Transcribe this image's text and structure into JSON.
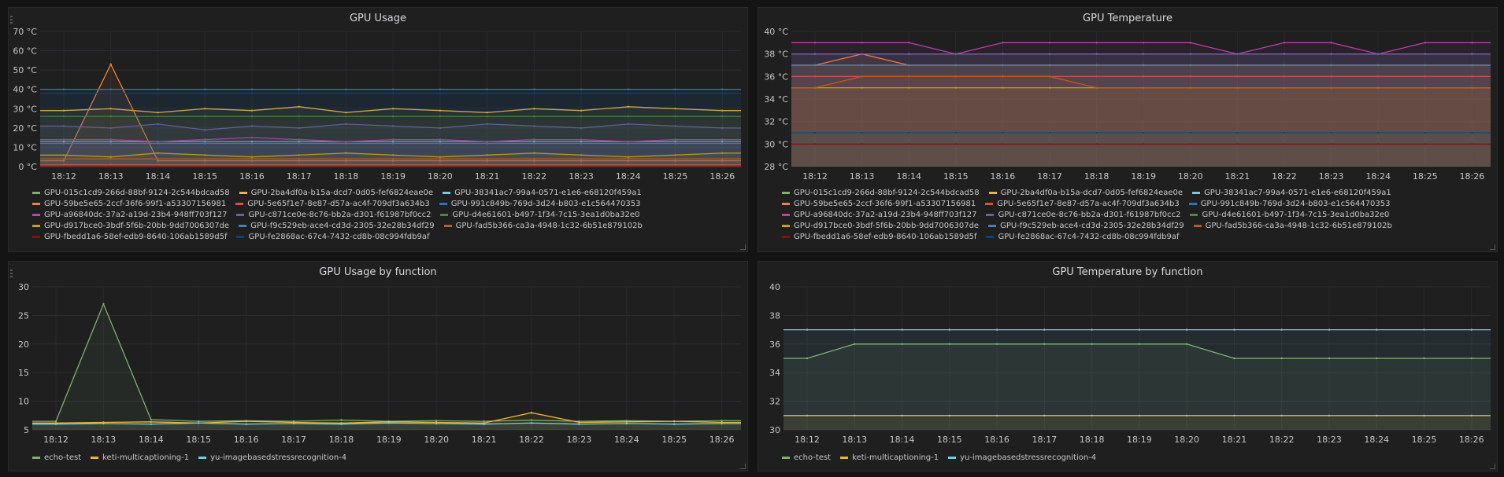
{
  "colors": {
    "bg": "#141414",
    "panel": "#1f1f20",
    "grid": "#2e2e30",
    "text": "#c7c7c7"
  },
  "time_ticks": [
    "18:12",
    "18:13",
    "18:14",
    "18:15",
    "18:16",
    "18:17",
    "18:18",
    "18:19",
    "18:20",
    "18:21",
    "18:22",
    "18:23",
    "18:24",
    "18:25",
    "18:26"
  ],
  "gpu_legend": [
    {
      "name": "GPU-015c1cd9-266d-88bf-9124-2c544bdcad58",
      "color": "#7eb26d"
    },
    {
      "name": "GPU-2ba4df0a-b15a-dcd7-0d05-fef6824eae0e",
      "color": "#eab839"
    },
    {
      "name": "GPU-38341ac7-99a4-0571-e1e6-e68120f459a1",
      "color": "#6ed0e0"
    },
    {
      "name": "GPU-59be5e65-2ccf-36f6-99f1-a53307156981",
      "color": "#ef843c"
    },
    {
      "name": "GPU-5e65f1e7-8e87-d57a-ac4f-709df3a634b3",
      "color": "#e24d42"
    },
    {
      "name": "GPU-991c849b-769d-3d24-b803-e1c564470353",
      "color": "#1f78c1"
    },
    {
      "name": "GPU-a96840dc-37a2-a19d-23b4-948ff703f127",
      "color": "#ba43a9"
    },
    {
      "name": "GPU-c871ce0e-8c76-bb2a-d301-f61987bf0cc2",
      "color": "#705da0"
    },
    {
      "name": "GPU-d4e61601-b497-1f34-7c15-3ea1d0ba32e0",
      "color": "#508642"
    },
    {
      "name": "GPU-d917bce0-3bdf-5f6b-20bb-9dd7006307de",
      "color": "#cca300"
    },
    {
      "name": "GPU-f9c529eb-ace4-cd3d-2305-32e28b34df29",
      "color": "#447ebc"
    },
    {
      "name": "GPU-fad5b366-ca3a-4948-1c32-6b51e879102b",
      "color": "#c15c17"
    },
    {
      "name": "GPU-fbedd1a6-58ef-edb9-8640-106ab1589d5f",
      "color": "#890f02"
    },
    {
      "name": "GPU-fe2868ac-67c4-7432-cd8b-08c994fdb9af",
      "color": "#0a437c"
    }
  ],
  "fn_legend": [
    {
      "name": "echo-test",
      "color": "#7eb26d"
    },
    {
      "name": "keti-multicaptioning-1",
      "color": "#eab839"
    },
    {
      "name": "yu-imagebasedstressrecognition-4",
      "color": "#6ed0e0"
    }
  ],
  "panels": {
    "usage": {
      "title": "GPU Usage",
      "y_ticks": [
        "0 °C",
        "10 °C",
        "20 °C",
        "30 °C",
        "40 °C",
        "50 °C",
        "60 °C",
        "70 °C"
      ]
    },
    "temp": {
      "title": "GPU Temperature",
      "y_ticks": [
        "28 °C",
        "30 °C",
        "32 °C",
        "34 °C",
        "36 °C",
        "38 °C",
        "40 °C"
      ]
    },
    "usage_fn": {
      "title": "GPU Usage by function",
      "y_ticks": [
        "5",
        "10",
        "15",
        "20",
        "25",
        "30"
      ]
    },
    "temp_fn": {
      "title": "GPU Temperature by function",
      "y_ticks": [
        "30",
        "32",
        "34",
        "36",
        "38",
        "40"
      ]
    }
  },
  "chart_data": [
    {
      "type": "line",
      "title": "GPU Usage",
      "ylim": [
        0,
        70
      ],
      "x": [
        "18:12",
        "18:13",
        "18:14",
        "18:15",
        "18:16",
        "18:17",
        "18:18",
        "18:19",
        "18:20",
        "18:21",
        "18:22",
        "18:23",
        "18:24",
        "18:25",
        "18:26"
      ],
      "series": [
        {
          "name": "GPU-015c1cd9-266d-88bf-9124-2c544bdcad58",
          "values": [
            0,
            0,
            0,
            0,
            0,
            0,
            0,
            0,
            0,
            0,
            0,
            0,
            0,
            0,
            0
          ]
        },
        {
          "name": "GPU-2ba4df0a-b15a-dcd7-0d05-fef6824eae0e",
          "values": [
            29,
            30,
            28,
            30,
            29,
            31,
            28,
            30,
            29,
            28,
            30,
            29,
            31,
            30,
            29
          ]
        },
        {
          "name": "GPU-38341ac7-99a4-0571-e1e6-e68120f459a1",
          "values": [
            13,
            13,
            13,
            13,
            13,
            13,
            13,
            13,
            13,
            13,
            13,
            13,
            13,
            13,
            13
          ]
        },
        {
          "name": "GPU-59be5e65-2ccf-36f6-99f1-a53307156981",
          "values": [
            3,
            53,
            3,
            3,
            3,
            3,
            3,
            3,
            3,
            3,
            3,
            3,
            3,
            3,
            3
          ]
        },
        {
          "name": "GPU-5e65f1e7-8e87-d57a-ac4f-709df3a634b3",
          "values": [
            1,
            1,
            1,
            1,
            1,
            1,
            1,
            1,
            1,
            1,
            1,
            1,
            1,
            1,
            1
          ]
        },
        {
          "name": "GPU-991c849b-769d-3d24-b803-e1c564470353",
          "values": [
            40,
            40,
            40,
            40,
            40,
            40,
            40,
            40,
            40,
            40,
            40,
            40,
            40,
            40,
            40
          ]
        },
        {
          "name": "GPU-a96840dc-37a2-a19d-23b4-948ff703f127",
          "values": [
            14,
            14,
            13,
            14,
            15,
            14,
            13,
            14,
            14,
            13,
            14,
            14,
            13,
            14,
            14
          ]
        },
        {
          "name": "GPU-c871ce0e-8c76-bb2a-d301-f61987bf0cc2",
          "values": [
            21,
            20,
            22,
            19,
            21,
            20,
            22,
            21,
            20,
            22,
            21,
            20,
            22,
            21,
            20
          ]
        },
        {
          "name": "GPU-d4e61601-b497-1f34-7c15-3ea1d0ba32e0",
          "values": [
            26,
            26,
            26,
            26,
            26,
            26,
            26,
            26,
            26,
            26,
            26,
            26,
            26,
            26,
            26
          ]
        },
        {
          "name": "GPU-d917bce0-3bdf-5f6b-20bb-9dd7006307de",
          "values": [
            6,
            5,
            7,
            6,
            5,
            6,
            7,
            6,
            5,
            6,
            7,
            6,
            5,
            6,
            7
          ]
        },
        {
          "name": "GPU-f9c529eb-ace4-cd3d-2305-32e28b34df29",
          "values": [
            12,
            12,
            12,
            12,
            12,
            12,
            12,
            12,
            12,
            12,
            12,
            12,
            12,
            12,
            12
          ]
        },
        {
          "name": "GPU-fad5b366-ca3a-4948-1c32-6b51e879102b",
          "values": [
            4,
            4,
            4,
            4,
            4,
            4,
            4,
            4,
            4,
            4,
            4,
            4,
            4,
            4,
            4
          ]
        },
        {
          "name": "GPU-fbedd1a6-58ef-edb9-8640-106ab1589d5f",
          "values": [
            0,
            0,
            0,
            0,
            0,
            0,
            0,
            0,
            0,
            0,
            0,
            0,
            0,
            0,
            0
          ]
        },
        {
          "name": "GPU-fe2868ac-67c4-7432-cd8b-08c994fdb9af",
          "values": [
            38,
            38,
            38,
            38,
            38,
            38,
            38,
            38,
            38,
            38,
            38,
            38,
            38,
            38,
            38
          ]
        }
      ]
    },
    {
      "type": "line",
      "title": "GPU Temperature",
      "ylim": [
        28,
        40
      ],
      "x": [
        "18:12",
        "18:13",
        "18:14",
        "18:15",
        "18:16",
        "18:17",
        "18:18",
        "18:19",
        "18:20",
        "18:21",
        "18:22",
        "18:23",
        "18:24",
        "18:25",
        "18:26"
      ],
      "series": [
        {
          "name": "GPU-015c1cd9-266d-88bf-9124-2c544bdcad58",
          "values": [
            30,
            30,
            30,
            30,
            30,
            30,
            30,
            30,
            30,
            30,
            30,
            30,
            30,
            30,
            30
          ]
        },
        {
          "name": "GPU-2ba4df0a-b15a-dcd7-0d05-fef6824eae0e",
          "values": [
            37,
            37,
            37,
            37,
            37,
            37,
            37,
            37,
            37,
            37,
            37,
            37,
            37,
            37,
            37
          ]
        },
        {
          "name": "GPU-38341ac7-99a4-0571-e1e6-e68120f459a1",
          "values": [
            38,
            38,
            38,
            38,
            38,
            38,
            38,
            38,
            38,
            38,
            38,
            38,
            38,
            38,
            38
          ]
        },
        {
          "name": "GPU-59be5e65-2ccf-36f6-99f1-a53307156981",
          "values": [
            37,
            38,
            37,
            37,
            37,
            37,
            37,
            37,
            37,
            37,
            37,
            37,
            37,
            37,
            37
          ]
        },
        {
          "name": "GPU-5e65f1e7-8e87-d57a-ac4f-709df3a634b3",
          "values": [
            36,
            36,
            36,
            36,
            36,
            36,
            36,
            36,
            36,
            36,
            36,
            36,
            36,
            36,
            36
          ]
        },
        {
          "name": "GPU-991c849b-769d-3d24-b803-e1c564470353",
          "values": [
            31,
            31,
            31,
            31,
            31,
            31,
            31,
            31,
            31,
            31,
            31,
            31,
            31,
            31,
            31
          ]
        },
        {
          "name": "GPU-a96840dc-37a2-a19d-23b4-948ff703f127",
          "values": [
            39,
            39,
            39,
            38,
            39,
            39,
            39,
            39,
            39,
            38,
            39,
            39,
            38,
            39,
            39
          ]
        },
        {
          "name": "GPU-c871ce0e-8c76-bb2a-d301-f61987bf0cc2",
          "values": [
            38,
            38,
            38,
            38,
            38,
            38,
            38,
            38,
            38,
            38,
            38,
            38,
            38,
            38,
            38
          ]
        },
        {
          "name": "GPU-d4e61601-b497-1f34-7c15-3ea1d0ba32e0",
          "values": [
            31,
            31,
            31,
            31,
            31,
            31,
            31,
            31,
            31,
            31,
            31,
            31,
            31,
            31,
            31
          ]
        },
        {
          "name": "GPU-d917bce0-3bdf-5f6b-20bb-9dd7006307de",
          "values": [
            35,
            35,
            35,
            35,
            35,
            35,
            35,
            35,
            35,
            35,
            35,
            35,
            35,
            35,
            35
          ]
        },
        {
          "name": "GPU-f9c529eb-ace4-cd3d-2305-32e28b34df29",
          "values": [
            37,
            37,
            37,
            37,
            37,
            37,
            37,
            37,
            37,
            37,
            37,
            37,
            37,
            37,
            37
          ]
        },
        {
          "name": "GPU-fad5b366-ca3a-4948-1c32-6b51e879102b",
          "values": [
            35,
            36,
            36,
            36,
            36,
            36,
            35,
            35,
            35,
            35,
            35,
            35,
            35,
            35,
            35
          ]
        },
        {
          "name": "GPU-fbedd1a6-58ef-edb9-8640-106ab1589d5f",
          "values": [
            30,
            30,
            30,
            30,
            30,
            30,
            30,
            30,
            30,
            30,
            30,
            30,
            30,
            30,
            30
          ]
        },
        {
          "name": "GPU-fe2868ac-67c4-7432-cd8b-08c994fdb9af",
          "values": [
            31,
            31,
            31,
            31,
            31,
            31,
            31,
            31,
            31,
            31,
            31,
            31,
            31,
            31,
            31
          ]
        }
      ]
    },
    {
      "type": "line",
      "title": "GPU Usage by function",
      "ylim": [
        5,
        30
      ],
      "x": [
        "18:12",
        "18:13",
        "18:14",
        "18:15",
        "18:16",
        "18:17",
        "18:18",
        "18:19",
        "18:20",
        "18:21",
        "18:22",
        "18:23",
        "18:24",
        "18:25",
        "18:26"
      ],
      "series": [
        {
          "name": "echo-test",
          "values": [
            6.5,
            27,
            6.8,
            6.5,
            6.6,
            6.5,
            6.7,
            6.5,
            6.6,
            6.5,
            6.7,
            6.5,
            6.6,
            6.5,
            6.6
          ]
        },
        {
          "name": "keti-multicaptioning-1",
          "values": [
            6.2,
            6.3,
            6.4,
            6.2,
            6.5,
            6.3,
            6.2,
            6.4,
            6.3,
            6.2,
            8.0,
            6.3,
            6.4,
            6.5,
            6.3
          ]
        },
        {
          "name": "yu-imagebasedstressrecognition-4",
          "values": [
            6.0,
            6.1,
            6.0,
            6.2,
            6.0,
            6.1,
            6.0,
            6.2,
            6.1,
            6.0,
            6.2,
            6.0,
            6.1,
            6.0,
            6.1
          ]
        }
      ]
    },
    {
      "type": "line",
      "title": "GPU Temperature by function",
      "ylim": [
        30,
        40
      ],
      "x": [
        "18:12",
        "18:13",
        "18:14",
        "18:15",
        "18:16",
        "18:17",
        "18:18",
        "18:19",
        "18:20",
        "18:21",
        "18:22",
        "18:23",
        "18:24",
        "18:25",
        "18:26"
      ],
      "series": [
        {
          "name": "echo-test",
          "values": [
            35,
            36,
            36,
            36,
            36,
            36,
            36,
            36,
            36,
            35,
            35,
            35,
            35,
            35,
            35
          ]
        },
        {
          "name": "keti-multicaptioning-1",
          "values": [
            31,
            31,
            31,
            31,
            31,
            31,
            31,
            31,
            31,
            31,
            31,
            31,
            31,
            31,
            31
          ]
        },
        {
          "name": "yu-imagebasedstressrecognition-4",
          "values": [
            37,
            37,
            37,
            37,
            37,
            37,
            37,
            37,
            37,
            37,
            37,
            37,
            37,
            37,
            37
          ]
        }
      ]
    }
  ]
}
